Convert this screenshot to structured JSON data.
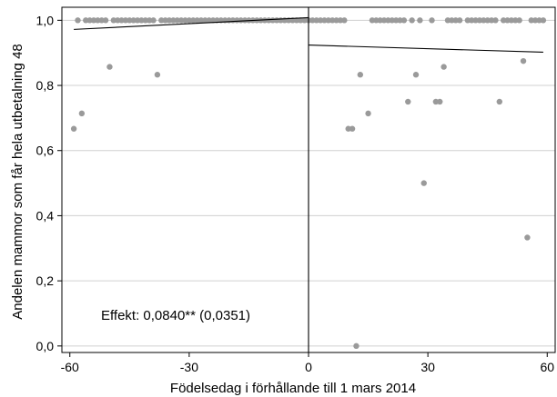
{
  "chart_data": {
    "type": "scatter",
    "xlabel": "Födelsedag i förhållande till 1 mars 2014",
    "ylabel": "Andelen mammor som får hela utbetalning 48",
    "annotation": "Effekt: 0,0840** (0,0351)",
    "xlim": [
      -62,
      62
    ],
    "ylim": [
      -0.02,
      1.04
    ],
    "x_ticks": [
      -60,
      -30,
      0,
      30,
      60
    ],
    "x_tick_labels": [
      "-60",
      "-30",
      "0",
      "30",
      "60"
    ],
    "y_ticks": [
      0,
      0.2,
      0.4,
      0.6,
      0.8,
      1.0
    ],
    "y_tick_labels": [
      "0,0",
      "0,2",
      "0,4",
      "0,6",
      "0,8",
      "1,0"
    ],
    "grid": "horizontal",
    "cutoff_x": 0,
    "colors": {
      "points": "#9a9a9a",
      "lines": "#000000",
      "grid": "#d0d0d0"
    },
    "points": [
      {
        "x": -59,
        "y": 0.667
      },
      {
        "x": -57,
        "y": 0.714
      },
      {
        "x": -50,
        "y": 0.857
      },
      {
        "x": -38,
        "y": 0.833
      },
      {
        "x": -58,
        "y": 1.0
      },
      {
        "x": -56,
        "y": 1.0
      },
      {
        "x": -55,
        "y": 1.0
      },
      {
        "x": -54,
        "y": 1.0
      },
      {
        "x": -53,
        "y": 1.0
      },
      {
        "x": -52,
        "y": 1.0
      },
      {
        "x": -51,
        "y": 1.0
      },
      {
        "x": -49,
        "y": 1.0
      },
      {
        "x": -48,
        "y": 1.0
      },
      {
        "x": -47,
        "y": 1.0
      },
      {
        "x": -46,
        "y": 1.0
      },
      {
        "x": -45,
        "y": 1.0
      },
      {
        "x": -44,
        "y": 1.0
      },
      {
        "x": -43,
        "y": 1.0
      },
      {
        "x": -42,
        "y": 1.0
      },
      {
        "x": -41,
        "y": 1.0
      },
      {
        "x": -40,
        "y": 1.0
      },
      {
        "x": -39,
        "y": 1.0
      },
      {
        "x": -37,
        "y": 1.0
      },
      {
        "x": -36,
        "y": 1.0
      },
      {
        "x": -35,
        "y": 1.0
      },
      {
        "x": -34,
        "y": 1.0
      },
      {
        "x": -33,
        "y": 1.0
      },
      {
        "x": -32,
        "y": 1.0
      },
      {
        "x": -31,
        "y": 1.0
      },
      {
        "x": -30,
        "y": 1.0
      },
      {
        "x": -29,
        "y": 1.0
      },
      {
        "x": -28,
        "y": 1.0
      },
      {
        "x": -27,
        "y": 1.0
      },
      {
        "x": -26,
        "y": 1.0
      },
      {
        "x": -25,
        "y": 1.0
      },
      {
        "x": -24,
        "y": 1.0
      },
      {
        "x": -23,
        "y": 1.0
      },
      {
        "x": -22,
        "y": 1.0
      },
      {
        "x": -21,
        "y": 1.0
      },
      {
        "x": -20,
        "y": 1.0
      },
      {
        "x": -19,
        "y": 1.0
      },
      {
        "x": -18,
        "y": 1.0
      },
      {
        "x": -17,
        "y": 1.0
      },
      {
        "x": -16,
        "y": 1.0
      },
      {
        "x": -15,
        "y": 1.0
      },
      {
        "x": -14,
        "y": 1.0
      },
      {
        "x": -13,
        "y": 1.0
      },
      {
        "x": -12,
        "y": 1.0
      },
      {
        "x": -11,
        "y": 1.0
      },
      {
        "x": -10,
        "y": 1.0
      },
      {
        "x": -9,
        "y": 1.0
      },
      {
        "x": -8,
        "y": 1.0
      },
      {
        "x": -7,
        "y": 1.0
      },
      {
        "x": -6,
        "y": 1.0
      },
      {
        "x": -5,
        "y": 1.0
      },
      {
        "x": -4,
        "y": 1.0
      },
      {
        "x": -3,
        "y": 1.0
      },
      {
        "x": -2,
        "y": 1.0
      },
      {
        "x": -1,
        "y": 1.0
      },
      {
        "x": 0,
        "y": 1.0
      },
      {
        "x": 1,
        "y": 1.0
      },
      {
        "x": 2,
        "y": 1.0
      },
      {
        "x": 3,
        "y": 1.0
      },
      {
        "x": 4,
        "y": 1.0
      },
      {
        "x": 5,
        "y": 1.0
      },
      {
        "x": 6,
        "y": 1.0
      },
      {
        "x": 7,
        "y": 1.0
      },
      {
        "x": 8,
        "y": 1.0
      },
      {
        "x": 9,
        "y": 1.0
      },
      {
        "x": 10,
        "y": 0.667
      },
      {
        "x": 11,
        "y": 0.667
      },
      {
        "x": 12,
        "y": 0.0
      },
      {
        "x": 13,
        "y": 0.833
      },
      {
        "x": 15,
        "y": 0.714
      },
      {
        "x": 16,
        "y": 1.0
      },
      {
        "x": 17,
        "y": 1.0
      },
      {
        "x": 18,
        "y": 1.0
      },
      {
        "x": 19,
        "y": 1.0
      },
      {
        "x": 20,
        "y": 1.0
      },
      {
        "x": 21,
        "y": 1.0
      },
      {
        "x": 22,
        "y": 1.0
      },
      {
        "x": 23,
        "y": 1.0
      },
      {
        "x": 24,
        "y": 1.0
      },
      {
        "x": 25,
        "y": 0.75
      },
      {
        "x": 26,
        "y": 1.0
      },
      {
        "x": 27,
        "y": 0.833
      },
      {
        "x": 28,
        "y": 1.0
      },
      {
        "x": 29,
        "y": 0.5
      },
      {
        "x": 31,
        "y": 1.0
      },
      {
        "x": 32,
        "y": 0.75
      },
      {
        "x": 33,
        "y": 0.75
      },
      {
        "x": 34,
        "y": 0.857
      },
      {
        "x": 35,
        "y": 1.0
      },
      {
        "x": 36,
        "y": 1.0
      },
      {
        "x": 37,
        "y": 1.0
      },
      {
        "x": 38,
        "y": 1.0
      },
      {
        "x": 40,
        "y": 1.0
      },
      {
        "x": 41,
        "y": 1.0
      },
      {
        "x": 42,
        "y": 1.0
      },
      {
        "x": 43,
        "y": 1.0
      },
      {
        "x": 44,
        "y": 1.0
      },
      {
        "x": 45,
        "y": 1.0
      },
      {
        "x": 46,
        "y": 1.0
      },
      {
        "x": 47,
        "y": 1.0
      },
      {
        "x": 48,
        "y": 0.75
      },
      {
        "x": 49,
        "y": 1.0
      },
      {
        "x": 50,
        "y": 1.0
      },
      {
        "x": 51,
        "y": 1.0
      },
      {
        "x": 52,
        "y": 1.0
      },
      {
        "x": 53,
        "y": 1.0
      },
      {
        "x": 54,
        "y": 0.875
      },
      {
        "x": 55,
        "y": 0.333
      },
      {
        "x": 56,
        "y": 1.0
      },
      {
        "x": 57,
        "y": 1.0
      },
      {
        "x": 58,
        "y": 1.0
      },
      {
        "x": 59,
        "y": 1.0
      }
    ],
    "fit_lines": [
      {
        "segment": "left",
        "x": [
          -59,
          0
        ],
        "y": [
          0.972,
          1.008
        ]
      },
      {
        "segment": "right",
        "x": [
          0,
          59
        ],
        "y": [
          0.924,
          0.902
        ]
      }
    ]
  }
}
